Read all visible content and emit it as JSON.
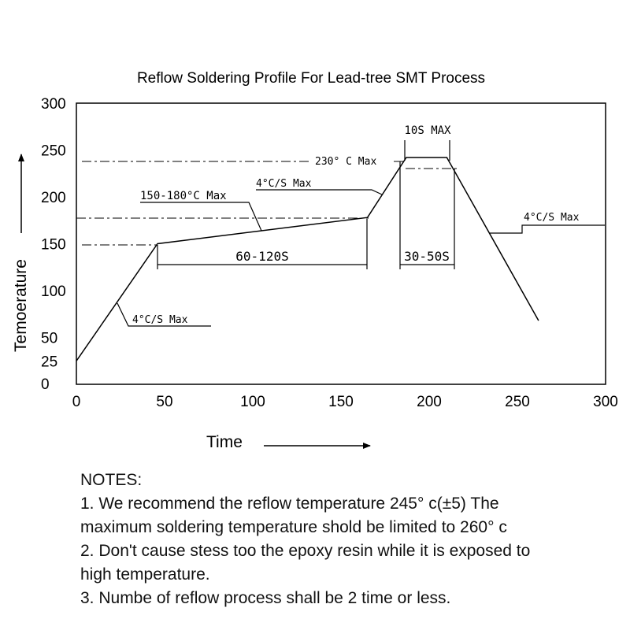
{
  "chart_data": {
    "type": "line",
    "title": "Reflow Soldering Profile For Lead-tree SMT Process",
    "xlabel": "Time",
    "ylabel": "Temoerature",
    "xlim": [
      0,
      300
    ],
    "ylim": [
      0,
      300
    ],
    "x_ticks": [
      "0",
      "50",
      "100",
      "150",
      "200",
      "250",
      "300"
    ],
    "y_ticks": [
      "0",
      "25",
      "50",
      "100",
      "150",
      "200",
      "250",
      "300"
    ],
    "grid": false,
    "series": [
      {
        "x": [
          0,
          46,
          165,
          187,
          210,
          262
        ],
        "y": [
          25,
          150,
          178,
          242,
          242,
          68
        ]
      }
    ],
    "annotations": {
      "ramp_up": "4°C/S  Max",
      "preheat": "150-180°C Max",
      "preheat_ramp": "4°C/S  Max",
      "preheat_time": "60-120S",
      "peak_limit": "230° C Max",
      "peak_time": "10S MAX",
      "liquidus_time": "30-50S",
      "cool_down": "4°C/S  Max"
    }
  },
  "notes": {
    "heading": "NOTES:",
    "lines": [
      "1. We recommend the reflow temperature 245° c(±5) The",
      "maximum soldering temperature shold be limited to 260° c",
      "2. Don't cause stess too the epoxy resin while it is exposed to",
      "high temperature.",
      "3. Numbe of reflow process shall be 2 time or less."
    ]
  }
}
